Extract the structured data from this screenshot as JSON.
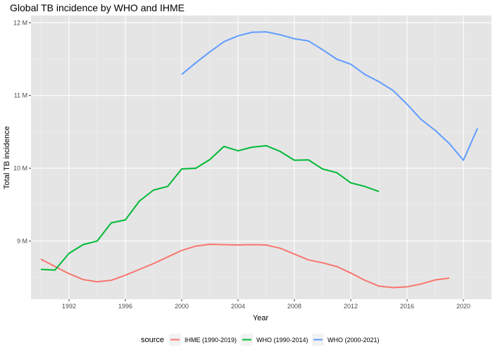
{
  "chart_data": {
    "type": "line",
    "title": "Global TB incidence by WHO and IHME",
    "xlabel": "Year",
    "ylabel": "Total TB incidence",
    "xlim": [
      1989.3,
      2022.0
    ],
    "ylim": [
      8.2,
      12.1
    ],
    "x_ticks": [
      1992,
      1996,
      2000,
      2004,
      2008,
      2012,
      2016,
      2020
    ],
    "x_tick_labels": [
      "1992",
      "1996",
      "2000",
      "2004",
      "2008",
      "2012",
      "2016",
      "2020"
    ],
    "y_ticks": [
      9,
      10,
      11,
      12
    ],
    "y_tick_labels": [
      "9 M",
      "10 M",
      "11 M",
      "12 M"
    ],
    "y_unit": "M",
    "grid": true,
    "background": "#e5e5e5",
    "legend": {
      "title": "source",
      "placement": "bottom"
    },
    "series": [
      {
        "name": "IHME (1990-2019)",
        "color": "#f8766d",
        "x": [
          1990,
          1991,
          1992,
          1993,
          1994,
          1995,
          1996,
          1997,
          1998,
          1999,
          2000,
          2001,
          2002,
          2003,
          2004,
          2005,
          2006,
          2007,
          2008,
          2009,
          2010,
          2011,
          2012,
          2013,
          2014,
          2015,
          2016,
          2017,
          2018,
          2019
        ],
        "values": [
          8.75,
          8.65,
          8.55,
          8.47,
          8.44,
          8.46,
          8.53,
          8.61,
          8.69,
          8.78,
          8.87,
          8.93,
          8.955,
          8.95,
          8.945,
          8.95,
          8.945,
          8.9,
          8.82,
          8.74,
          8.7,
          8.65,
          8.56,
          8.46,
          8.38,
          8.36,
          8.37,
          8.41,
          8.465,
          8.49
        ]
      },
      {
        "name": "WHO (1990-2014)",
        "color": "#00ba38",
        "x": [
          1990,
          1991,
          1992,
          1993,
          1994,
          1995,
          1996,
          1997,
          1998,
          1999,
          2000,
          2001,
          2002,
          2003,
          2004,
          2005,
          2006,
          2007,
          2008,
          2009,
          2010,
          2011,
          2012,
          2013,
          2014
        ],
        "values": [
          8.61,
          8.6,
          8.83,
          8.95,
          9.0,
          9.25,
          9.29,
          9.55,
          9.7,
          9.75,
          9.99,
          10.0,
          10.12,
          10.3,
          10.24,
          10.29,
          10.31,
          10.23,
          10.11,
          10.115,
          9.99,
          9.94,
          9.8,
          9.75,
          9.68
        ]
      },
      {
        "name": "WHO (2000-2021)",
        "color": "#619cff",
        "x": [
          2000,
          2001,
          2002,
          2003,
          2004,
          2005,
          2006,
          2007,
          2008,
          2009,
          2010,
          2011,
          2012,
          2013,
          2014,
          2015,
          2016,
          2017,
          2018,
          2019,
          2020,
          2021
        ],
        "values": [
          11.29,
          11.45,
          11.6,
          11.74,
          11.82,
          11.87,
          11.875,
          11.835,
          11.78,
          11.75,
          11.63,
          11.5,
          11.43,
          11.29,
          11.19,
          11.07,
          10.88,
          10.67,
          10.52,
          10.34,
          10.11,
          10.55
        ]
      }
    ]
  }
}
